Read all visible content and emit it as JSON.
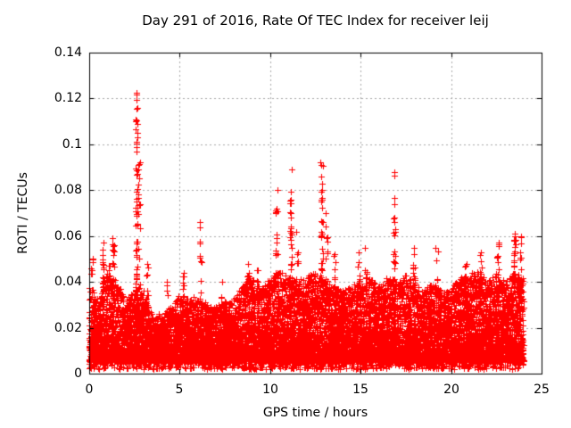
{
  "chart_data": {
    "type": "scatter",
    "title": "Day 291 of 2016, Rate Of TEC Index for receiver leij",
    "xlabel": "GPS time / hours",
    "ylabel": "ROTI / TECUs",
    "xlim": [
      0,
      25
    ],
    "ylim": [
      0,
      0.14
    ],
    "xticks": [
      0,
      5,
      10,
      15,
      20,
      25
    ],
    "xtick_labels": [
      "0",
      "5",
      "10",
      "15",
      "20",
      "25"
    ],
    "yticks": [
      0,
      0.02,
      0.04,
      0.06,
      0.08,
      0.1,
      0.12,
      0.14
    ],
    "ytick_labels": [
      "0",
      "0.02",
      "0.04",
      "0.06",
      "0.08",
      "0.1",
      "0.12",
      "0.14"
    ],
    "grid": true,
    "legend": false,
    "marker": {
      "glyph": "plus",
      "size": 7,
      "color": "#ff0000"
    },
    "colors": {
      "marker": "#ff0000",
      "grid": "#a9a9a9",
      "axis": "#000000",
      "text": "#000000",
      "background": "#ffffff"
    },
    "grid_dash": [
      2,
      3
    ],
    "series": [
      {
        "name": "ROTI",
        "x_range": [
          0,
          24
        ],
        "baseline": {
          "n_points": 13500,
          "seed": 1234567,
          "y_floor": 0.006,
          "skew_exponent": 2.0,
          "fringe_fraction": 0.07,
          "fringe_y": [
            0.002,
            0.007
          ],
          "envelope_step_hours": 0.5,
          "envelope_top": [
            0.038,
            0.032,
            0.044,
            0.04,
            0.032,
            0.036,
            0.036,
            0.024,
            0.026,
            0.03,
            0.034,
            0.032,
            0.033,
            0.03,
            0.029,
            0.031,
            0.033,
            0.038,
            0.042,
            0.037,
            0.042,
            0.045,
            0.043,
            0.04,
            0.042,
            0.045,
            0.041,
            0.038,
            0.036,
            0.039,
            0.038,
            0.041,
            0.039,
            0.042,
            0.041,
            0.043,
            0.039,
            0.036,
            0.039,
            0.035,
            0.038,
            0.041,
            0.043,
            0.045,
            0.04,
            0.043,
            0.041,
            0.044,
            0.042
          ]
        },
        "spikes": [
          {
            "x": 0.15,
            "ymax": 0.05,
            "n": 10
          },
          {
            "x": 0.75,
            "ymax": 0.057,
            "n": 20
          },
          {
            "x": 1.1,
            "ymax": 0.047,
            "n": 10
          },
          {
            "x": 1.35,
            "ymax": 0.059,
            "n": 16
          },
          {
            "x": 2.62,
            "ymax": 0.1225,
            "n": 55
          },
          {
            "x": 2.75,
            "ymax": 0.092,
            "n": 18
          },
          {
            "x": 3.2,
            "ymax": 0.048,
            "n": 10
          },
          {
            "x": 4.3,
            "ymax": 0.04,
            "n": 6
          },
          {
            "x": 5.2,
            "ymax": 0.044,
            "n": 8
          },
          {
            "x": 6.15,
            "ymax": 0.066,
            "n": 16
          },
          {
            "x": 7.3,
            "ymax": 0.04,
            "n": 6
          },
          {
            "x": 8.8,
            "ymax": 0.048,
            "n": 12
          },
          {
            "x": 9.3,
            "ymax": 0.045,
            "n": 8
          },
          {
            "x": 10.35,
            "ymax": 0.08,
            "n": 22
          },
          {
            "x": 11.15,
            "ymax": 0.089,
            "n": 28
          },
          {
            "x": 11.5,
            "ymax": 0.062,
            "n": 10
          },
          {
            "x": 12.85,
            "ymax": 0.092,
            "n": 36
          },
          {
            "x": 13.1,
            "ymax": 0.07,
            "n": 14
          },
          {
            "x": 13.55,
            "ymax": 0.052,
            "n": 10
          },
          {
            "x": 14.9,
            "ymax": 0.053,
            "n": 10
          },
          {
            "x": 15.3,
            "ymax": 0.055,
            "n": 10
          },
          {
            "x": 16.85,
            "ymax": 0.088,
            "n": 22
          },
          {
            "x": 17.95,
            "ymax": 0.055,
            "n": 12
          },
          {
            "x": 19.2,
            "ymax": 0.055,
            "n": 10
          },
          {
            "x": 20.8,
            "ymax": 0.048,
            "n": 8
          },
          {
            "x": 21.65,
            "ymax": 0.053,
            "n": 12
          },
          {
            "x": 22.6,
            "ymax": 0.057,
            "n": 12
          },
          {
            "x": 23.5,
            "ymax": 0.061,
            "n": 18
          },
          {
            "x": 23.85,
            "ymax": 0.06,
            "n": 14
          }
        ]
      }
    ]
  }
}
